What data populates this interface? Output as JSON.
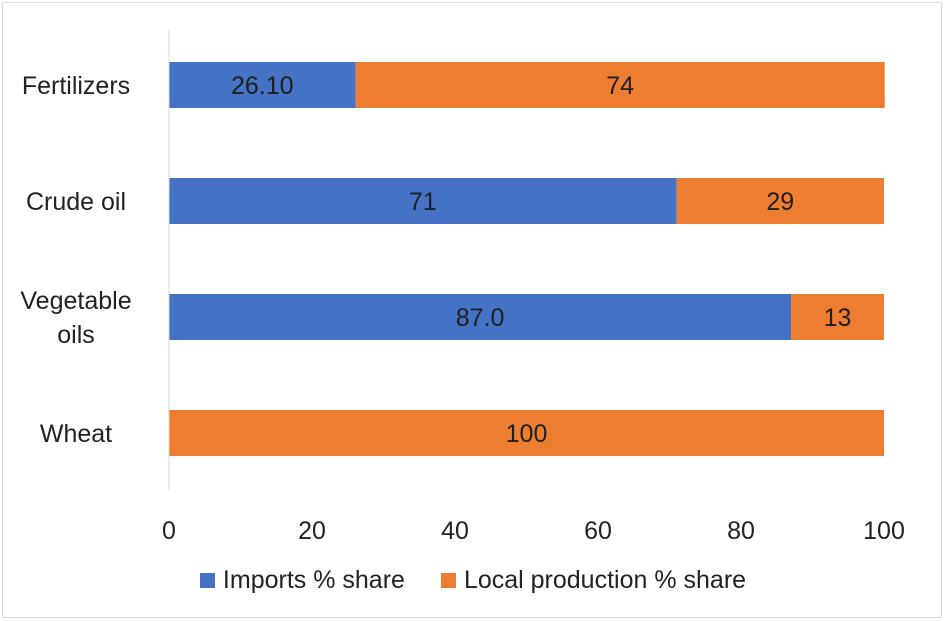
{
  "chart_data": {
    "type": "bar",
    "orientation": "horizontal",
    "stacked": true,
    "categories": [
      "Fertilizers",
      "Crude oil",
      "Vegetable oils",
      "Wheat"
    ],
    "category_lines": [
      [
        "Fertilizers"
      ],
      [
        "Crude oil"
      ],
      [
        "Vegetable",
        "oils"
      ],
      [
        "Wheat"
      ]
    ],
    "series": [
      {
        "name": "Imports % share",
        "color": "#4472c4",
        "values": [
          26.1,
          71,
          87.0,
          0
        ],
        "labels": [
          "26.10",
          "71",
          "87.0",
          ""
        ]
      },
      {
        "name": "Local production % share",
        "color": "#ed7d31",
        "values": [
          74,
          29,
          13,
          100
        ],
        "labels": [
          "74",
          "29",
          "13",
          "100"
        ]
      }
    ],
    "xlim": [
      0,
      100
    ],
    "xticks": [
      0,
      20,
      40,
      60,
      80,
      100
    ],
    "grid": false,
    "legend_position": "bottom"
  }
}
